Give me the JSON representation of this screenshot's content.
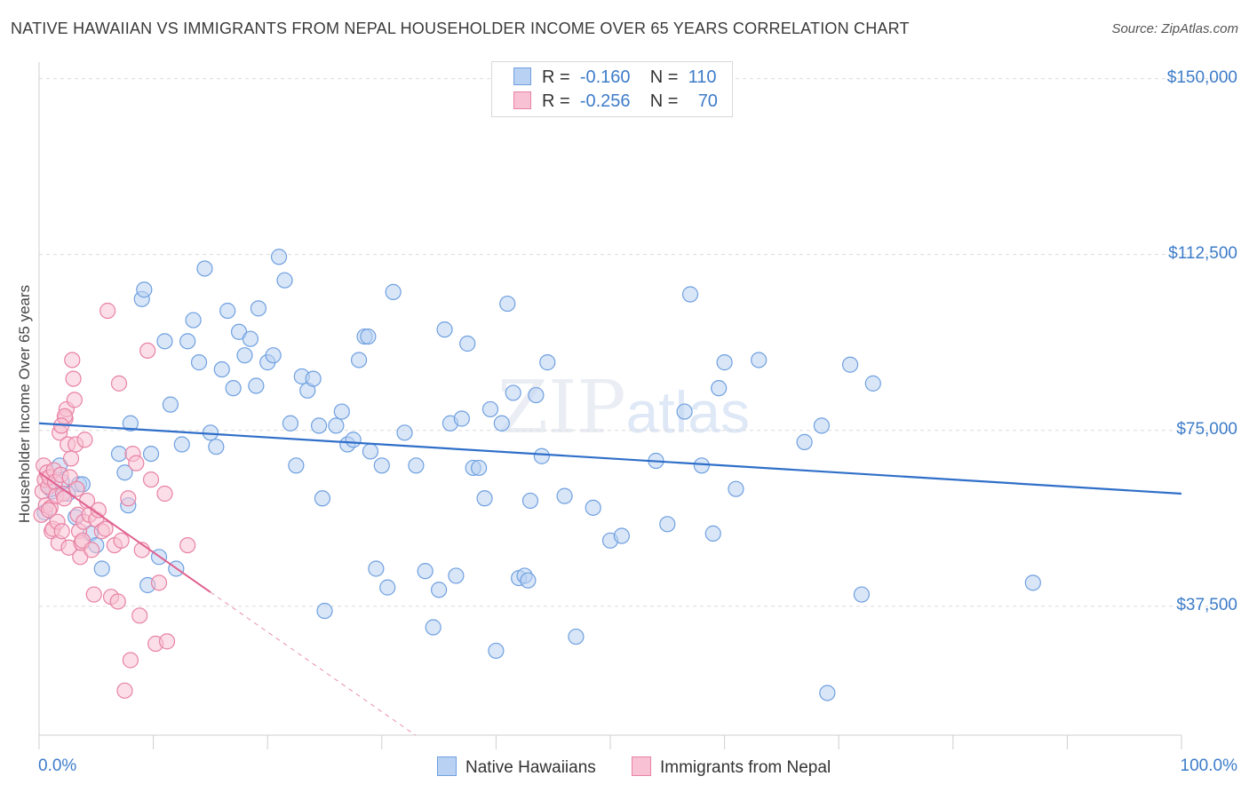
{
  "title": "NATIVE HAWAIIAN VS IMMIGRANTS FROM NEPAL HOUSEHOLDER INCOME OVER 65 YEARS CORRELATION CHART",
  "source": "Source: ZipAtlas.com",
  "watermark": {
    "zip": "ZIP",
    "atlas": "atlas"
  },
  "legend": {
    "rows": [
      {
        "r_label": "R =",
        "r_value": "-0.160",
        "n_label": "N =",
        "n_value": "110",
        "color": "#6fa0e0",
        "fill": "#b9d1f3"
      },
      {
        "r_label": "R =",
        "r_value": "-0.256",
        "n_label": "N =",
        "n_value": "70",
        "color": "#e882a4",
        "fill": "#f8c2d4"
      }
    ]
  },
  "chart_data": {
    "type": "scatter",
    "title": "NATIVE HAWAIIAN VS IMMIGRANTS FROM NEPAL HOUSEHOLDER INCOME OVER 65 YEARS CORRELATION CHART",
    "xlabel": "",
    "ylabel": "Householder Income Over 65 years",
    "xlim": [
      0,
      100
    ],
    "ylim": [
      10000,
      152000
    ],
    "x_tick_labels": [
      "0.0%",
      "100.0%"
    ],
    "y_ticks": [
      37500,
      75000,
      112500,
      150000
    ],
    "y_tick_labels": [
      "$37,500",
      "$75,000",
      "$112,500",
      "$150,000"
    ],
    "grid": true,
    "series": [
      {
        "name": "Native Hawaiians",
        "color": "#6fa0e0",
        "fill": "#b9d1f3",
        "trend": {
          "x": [
            0,
            100
          ],
          "y": [
            76500,
            61500
          ],
          "color": "#2f6fc9"
        },
        "points": [
          [
            0.5,
            57500
          ],
          [
            1.2,
            62000
          ],
          [
            1.8,
            67500
          ],
          [
            2.5,
            61500
          ],
          [
            3.2,
            56500
          ],
          [
            3.5,
            63500
          ],
          [
            3.8,
            63500
          ],
          [
            4.5,
            53000
          ],
          [
            5,
            50500
          ],
          [
            5.5,
            45500
          ],
          [
            7,
            70000
          ],
          [
            7.5,
            66000
          ],
          [
            7.8,
            59000
          ],
          [
            8,
            76500
          ],
          [
            9,
            103000
          ],
          [
            9.2,
            105000
          ],
          [
            9.5,
            42000
          ],
          [
            9.8,
            70000
          ],
          [
            10.5,
            48000
          ],
          [
            11,
            94000
          ],
          [
            11.5,
            80500
          ],
          [
            12,
            45500
          ],
          [
            12.5,
            72000
          ],
          [
            13,
            94000
          ],
          [
            13.5,
            98500
          ],
          [
            14,
            89500
          ],
          [
            14.5,
            109500
          ],
          [
            15,
            74500
          ],
          [
            15.5,
            71500
          ],
          [
            16,
            88000
          ],
          [
            16.5,
            100500
          ],
          [
            17,
            84000
          ],
          [
            17.5,
            96000
          ],
          [
            18,
            91000
          ],
          [
            18.5,
            94500
          ],
          [
            19,
            84500
          ],
          [
            19.2,
            101000
          ],
          [
            20,
            89500
          ],
          [
            20.5,
            91000
          ],
          [
            21,
            112000
          ],
          [
            21.5,
            107000
          ],
          [
            22,
            76500
          ],
          [
            22.5,
            67500
          ],
          [
            23,
            86500
          ],
          [
            23.5,
            83500
          ],
          [
            24,
            86000
          ],
          [
            24.5,
            76000
          ],
          [
            24.8,
            60500
          ],
          [
            25,
            36500
          ],
          [
            26,
            76000
          ],
          [
            26.5,
            79000
          ],
          [
            27,
            72000
          ],
          [
            27.5,
            73000
          ],
          [
            28,
            90000
          ],
          [
            28.5,
            95000
          ],
          [
            28.8,
            95000
          ],
          [
            29,
            70500
          ],
          [
            29.5,
            45500
          ],
          [
            30,
            67500
          ],
          [
            30.5,
            41500
          ],
          [
            31,
            104500
          ],
          [
            32,
            74500
          ],
          [
            33,
            67500
          ],
          [
            33.8,
            45000
          ],
          [
            34.5,
            33000
          ],
          [
            35,
            41000
          ],
          [
            35.5,
            96500
          ],
          [
            36,
            76500
          ],
          [
            36.5,
            44000
          ],
          [
            37,
            77500
          ],
          [
            37.5,
            93500
          ],
          [
            38,
            67000
          ],
          [
            38.5,
            67000
          ],
          [
            39,
            60500
          ],
          [
            39.5,
            79500
          ],
          [
            40,
            28000
          ],
          [
            40.5,
            76500
          ],
          [
            41,
            102000
          ],
          [
            41.5,
            83000
          ],
          [
            42,
            43500
          ],
          [
            42.5,
            44000
          ],
          [
            42.8,
            43000
          ],
          [
            43,
            60000
          ],
          [
            43.5,
            82500
          ],
          [
            44,
            69500
          ],
          [
            44.5,
            89500
          ],
          [
            46,
            61000
          ],
          [
            47,
            31000
          ],
          [
            48.5,
            58500
          ],
          [
            50,
            51500
          ],
          [
            51,
            52500
          ],
          [
            54,
            68500
          ],
          [
            55,
            55000
          ],
          [
            56.5,
            79000
          ],
          [
            57,
            104000
          ],
          [
            58,
            67500
          ],
          [
            59,
            53000
          ],
          [
            59.5,
            84000
          ],
          [
            60,
            89500
          ],
          [
            61,
            62500
          ],
          [
            63,
            90000
          ],
          [
            67,
            72500
          ],
          [
            68.5,
            76000
          ],
          [
            69,
            19000
          ],
          [
            71,
            89000
          ],
          [
            72,
            40000
          ],
          [
            73,
            85000
          ],
          [
            87,
            42500
          ],
          [
            1,
            62500
          ],
          [
            2,
            64000
          ]
        ]
      },
      {
        "name": "Immigrants from Nepal",
        "color": "#e882a4",
        "fill": "#f8c2d4",
        "trend": {
          "x": [
            0,
            15
          ],
          "y": [
            66000,
            40500
          ],
          "color": "#e0608f",
          "dashed_to": {
            "x": 40,
            "y": 0
          }
        },
        "points": [
          [
            0.2,
            57000
          ],
          [
            0.3,
            62000
          ],
          [
            0.4,
            67500
          ],
          [
            0.5,
            64500
          ],
          [
            0.6,
            59000
          ],
          [
            0.7,
            66000
          ],
          [
            0.8,
            63000
          ],
          [
            0.9,
            65000
          ],
          [
            1,
            58500
          ],
          [
            1.1,
            53500
          ],
          [
            1.2,
            54000
          ],
          [
            1.3,
            66500
          ],
          [
            1.4,
            64000
          ],
          [
            1.5,
            61000
          ],
          [
            1.6,
            55500
          ],
          [
            1.7,
            51000
          ],
          [
            1.8,
            74500
          ],
          [
            1.9,
            65500
          ],
          [
            2,
            53500
          ],
          [
            2.1,
            61500
          ],
          [
            2.2,
            60500
          ],
          [
            2.3,
            77500
          ],
          [
            2.4,
            79500
          ],
          [
            2.5,
            72000
          ],
          [
            2.6,
            50000
          ],
          [
            2.7,
            65000
          ],
          [
            2.8,
            69000
          ],
          [
            2.9,
            90000
          ],
          [
            3,
            86000
          ],
          [
            3.1,
            81500
          ],
          [
            3.2,
            72000
          ],
          [
            3.3,
            62500
          ],
          [
            3.4,
            57000
          ],
          [
            3.5,
            53500
          ],
          [
            3.6,
            48000
          ],
          [
            3.7,
            51000
          ],
          [
            3.8,
            51500
          ],
          [
            3.9,
            55500
          ],
          [
            4,
            73000
          ],
          [
            4.2,
            60000
          ],
          [
            4.4,
            57000
          ],
          [
            4.6,
            49500
          ],
          [
            4.8,
            40000
          ],
          [
            5,
            56000
          ],
          [
            5.2,
            58000
          ],
          [
            5.5,
            53500
          ],
          [
            5.8,
            54000
          ],
          [
            6,
            100500
          ],
          [
            6.3,
            39500
          ],
          [
            6.6,
            50500
          ],
          [
            6.9,
            38500
          ],
          [
            7,
            85000
          ],
          [
            7.2,
            51500
          ],
          [
            7.5,
            19500
          ],
          [
            7.8,
            60500
          ],
          [
            8,
            26000
          ],
          [
            8.2,
            70000
          ],
          [
            8.5,
            68000
          ],
          [
            8.8,
            35500
          ],
          [
            9,
            49500
          ],
          [
            9.5,
            92000
          ],
          [
            9.8,
            64500
          ],
          [
            10.2,
            29500
          ],
          [
            10.5,
            42500
          ],
          [
            11,
            61500
          ],
          [
            11.2,
            30000
          ],
          [
            13,
            50500
          ],
          [
            2.25,
            78000
          ],
          [
            1.95,
            76000
          ],
          [
            0.85,
            58000
          ]
        ]
      }
    ]
  },
  "bottom_legend": [
    {
      "label": "Native Hawaiians"
    },
    {
      "label": "Immigrants from Nepal"
    }
  ]
}
